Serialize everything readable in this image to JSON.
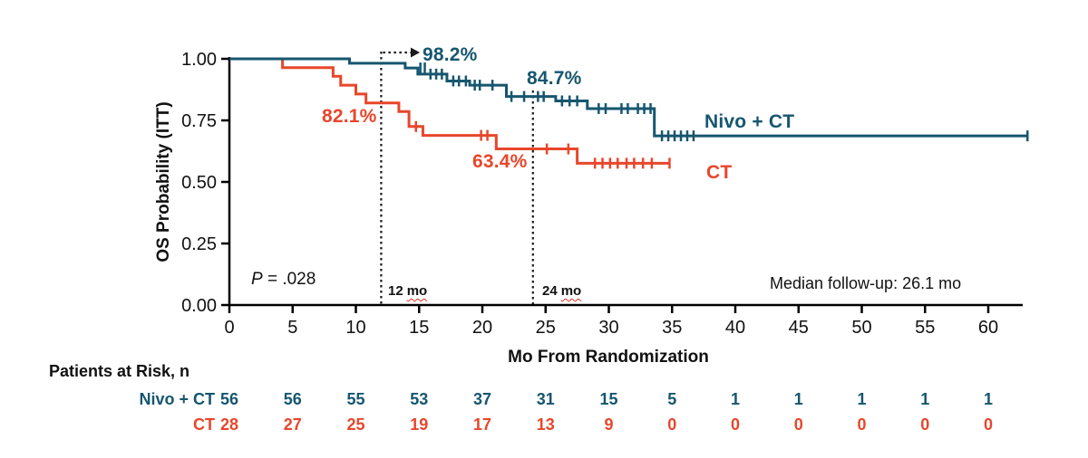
{
  "figure": {
    "p_value": {
      "var": "P",
      "rest": " = .028"
    },
    "median_followup": "Median follow-up: 26.1 mo",
    "risk_table_title": "Patients at Risk, n"
  },
  "chart_data": {
    "type": "line",
    "subtype": "kaplan-meier-step-curve",
    "title": "",
    "xlabel": "Mo From Randomization",
    "ylabel": "OS Probability (ITT)",
    "xlim": [
      0,
      62.7
    ],
    "ylim": [
      0,
      1.0
    ],
    "grid": false,
    "xticks": [
      "0",
      "5",
      "10",
      "15",
      "20",
      "25",
      "30",
      "35",
      "40",
      "45",
      "50",
      "55",
      "60"
    ],
    "xtick_values": [
      0,
      5,
      10,
      15,
      20,
      25,
      30,
      35,
      40,
      45,
      50,
      55,
      60
    ],
    "yticks": [
      "0.00",
      "0.25",
      "0.50",
      "0.75",
      "1.00"
    ],
    "ytick_values": [
      0,
      0.25,
      0.5,
      0.75,
      1.0
    ],
    "series": [
      {
        "name": "Nivo + CT",
        "color": "#16566f",
        "steps": [
          [
            0,
            1.0
          ],
          [
            9.5,
            0.982
          ],
          [
            13.9,
            0.963
          ],
          [
            14.9,
            0.938
          ],
          [
            17.2,
            0.91
          ],
          [
            19.0,
            0.893
          ],
          [
            21.9,
            0.847
          ],
          [
            25.8,
            0.829
          ],
          [
            28.3,
            0.798
          ],
          [
            33.6,
            0.687
          ]
        ],
        "end_time": 63.1,
        "censors": [
          [
            15.1,
            0.963
          ],
          [
            15.45,
            0.963
          ],
          [
            15.9,
            0.938
          ],
          [
            16.35,
            0.938
          ],
          [
            16.8,
            0.938
          ],
          [
            17.7,
            0.91
          ],
          [
            18.15,
            0.91
          ],
          [
            18.7,
            0.91
          ],
          [
            19.4,
            0.893
          ],
          [
            19.8,
            0.893
          ],
          [
            20.8,
            0.893
          ],
          [
            22.3,
            0.847
          ],
          [
            23.3,
            0.847
          ],
          [
            24.4,
            0.847
          ],
          [
            24.85,
            0.847
          ],
          [
            26.3,
            0.829
          ],
          [
            26.9,
            0.829
          ],
          [
            27.5,
            0.829
          ],
          [
            29.2,
            0.798
          ],
          [
            29.75,
            0.798
          ],
          [
            31.0,
            0.798
          ],
          [
            31.5,
            0.798
          ],
          [
            32.3,
            0.798
          ],
          [
            32.8,
            0.798
          ],
          [
            33.3,
            0.798
          ],
          [
            34.2,
            0.687
          ],
          [
            34.7,
            0.687
          ],
          [
            35.2,
            0.687
          ],
          [
            35.7,
            0.687
          ],
          [
            36.2,
            0.687
          ],
          [
            36.7,
            0.687
          ],
          [
            63.1,
            0.687
          ]
        ],
        "annotations": [
          {
            "text": "98.2%",
            "at": "12 mo"
          },
          {
            "text": "84.7%",
            "at": "24 mo"
          }
        ]
      },
      {
        "name": "CT",
        "color": "#e8462b",
        "steps": [
          [
            0,
            1.0
          ],
          [
            4.2,
            0.964
          ],
          [
            8.2,
            0.929
          ],
          [
            8.8,
            0.893
          ],
          [
            10.0,
            0.857
          ],
          [
            10.8,
            0.821
          ],
          [
            13.4,
            0.786
          ],
          [
            14.2,
            0.725
          ],
          [
            15.3,
            0.689
          ],
          [
            21.1,
            0.634
          ],
          [
            27.5,
            0.576
          ]
        ],
        "end_time": 34.8,
        "censors": [
          [
            14.75,
            0.725
          ],
          [
            19.9,
            0.689
          ],
          [
            20.4,
            0.689
          ],
          [
            25.1,
            0.634
          ],
          [
            26.8,
            0.634
          ],
          [
            28.9,
            0.576
          ],
          [
            29.5,
            0.576
          ],
          [
            30.1,
            0.576
          ],
          [
            30.7,
            0.576
          ],
          [
            31.4,
            0.576
          ],
          [
            32.0,
            0.576
          ],
          [
            32.7,
            0.576
          ],
          [
            33.4,
            0.576
          ],
          [
            34.8,
            0.576
          ]
        ],
        "annotations": [
          {
            "text": "82.1%",
            "at": "12 mo"
          },
          {
            "text": "63.4%",
            "at": "24 mo"
          }
        ]
      }
    ],
    "ref_lines": [
      {
        "time": 12,
        "num": "12",
        "unit": "mo"
      },
      {
        "time": 24,
        "num": "24",
        "unit": "mo"
      }
    ],
    "risk_table": {
      "times": [
        0,
        5,
        10,
        15,
        20,
        25,
        30,
        35,
        40,
        45,
        50,
        55,
        60
      ],
      "rows": [
        {
          "name": "Nivo + CT",
          "color": "#16566f",
          "values": [
            "56",
            "56",
            "55",
            "53",
            "37",
            "31",
            "15",
            "5",
            "1",
            "1",
            "1",
            "1",
            "1"
          ]
        },
        {
          "name": "CT",
          "color": "#e8462b",
          "values": [
            "28",
            "27",
            "25",
            "19",
            "17",
            "13",
            "9",
            "0",
            "0",
            "0",
            "0",
            "0",
            "0"
          ]
        }
      ]
    }
  }
}
